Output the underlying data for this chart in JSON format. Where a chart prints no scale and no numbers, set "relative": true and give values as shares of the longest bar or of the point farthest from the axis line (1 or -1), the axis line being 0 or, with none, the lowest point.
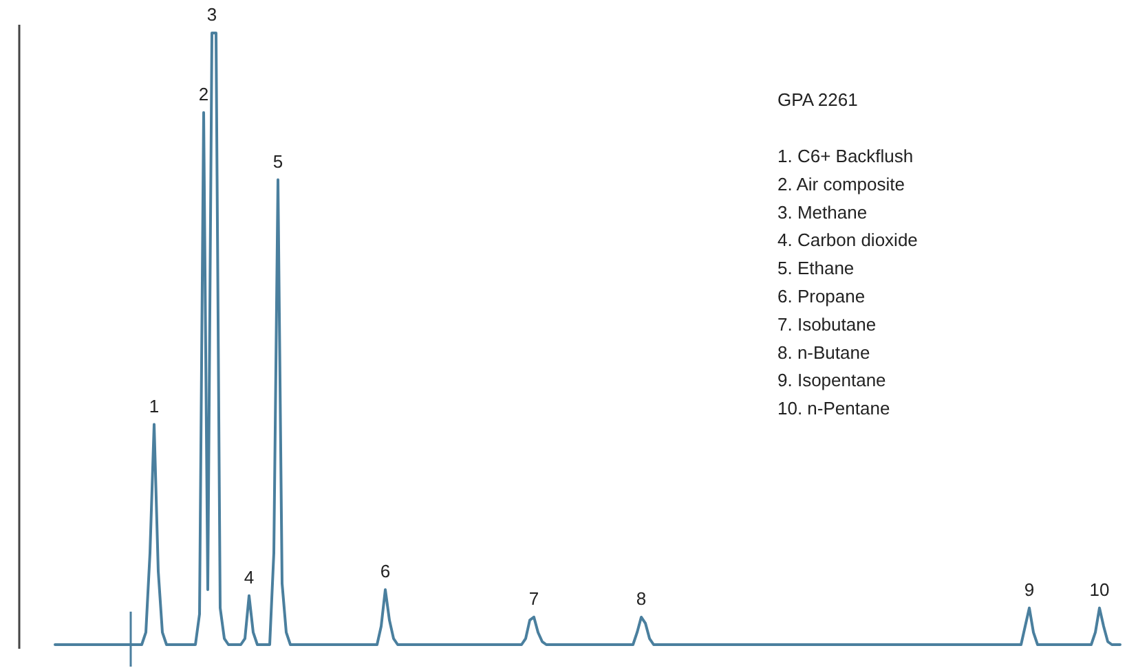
{
  "chart_data": {
    "type": "line",
    "title": "GPA 2261",
    "relative": true,
    "tick_labels": "x",
    "marker": "none",
    "annotations": [
      "1. C6+ Backflush",
      "2. Air composite",
      "3. Methane",
      "4. Carbon dioxide",
      "5. Ethane",
      "6. Propane",
      "7. Isobutane",
      "8. n-Butane",
      "9. Isopentane",
      "10. n-Pentane"
    ],
    "categories": [
      null,
      null,
      null,
      null,
      null,
      null,
      null,
      null,
      null,
      null,
      null,
      null,
      null,
      null,
      null,
      null,
      null,
      null,
      null,
      null,
      null,
      null,
      null,
      null,
      "1",
      null,
      null,
      null,
      null,
      null,
      null,
      null,
      null,
      null,
      null,
      null,
      "2",
      null,
      "3",
      null,
      null,
      null,
      null,
      null,
      null,
      null,
      null,
      "4",
      null,
      null,
      null,
      null,
      null,
      null,
      "5",
      null,
      null,
      null,
      null,
      null,
      null,
      null,
      null,
      null,
      null,
      null,
      null,
      null,
      null,
      null,
      null,
      null,
      null,
      null,
      null,
      null,
      null,
      null,
      null,
      null,
      "6",
      null,
      null,
      null,
      null,
      null,
      null,
      null,
      null,
      null,
      null,
      null,
      null,
      null,
      null,
      null,
      null,
      null,
      null,
      null,
      null,
      null,
      null,
      null,
      null,
      null,
      null,
      null,
      null,
      null,
      null,
      null,
      null,
      null,
      null,
      null,
      "7",
      null,
      null,
      null,
      null,
      null,
      null,
      null,
      null,
      null,
      null,
      null,
      null,
      null,
      null,
      null,
      null,
      null,
      null,
      null,
      null,
      null,
      null,
      null,
      null,
      null,
      "8",
      null,
      null,
      null,
      null,
      null,
      null,
      null,
      null,
      null,
      null,
      null,
      null,
      null,
      null,
      null,
      null,
      null,
      null,
      null,
      null,
      null,
      null,
      null,
      null,
      null,
      null,
      null,
      null,
      null,
      null,
      null,
      null,
      null,
      null,
      null,
      null,
      null,
      null,
      null,
      null,
      null,
      null,
      null,
      null,
      null,
      null,
      null,
      null,
      null,
      null,
      null,
      null,
      null,
      null,
      null,
      null,
      null,
      null,
      null,
      null,
      null,
      null,
      null,
      null,
      null,
      null,
      null,
      null,
      null,
      null,
      null,
      null,
      null,
      null,
      null,
      null,
      null,
      null,
      null,
      null,
      null,
      null,
      null,
      null,
      null,
      null,
      null,
      null,
      null,
      null,
      null,
      null,
      null,
      "9",
      null,
      null,
      null,
      null,
      null,
      null,
      null,
      null,
      null,
      null,
      null,
      null,
      null,
      null,
      null,
      null,
      "10",
      null,
      null,
      null,
      null,
      null
    ],
    "series": [
      {
        "color": "#4a7f9e",
        "line_style": "solid",
        "values": [
          0,
          0,
          0,
          0,
          0,
          0,
          0,
          0,
          0,
          0,
          0,
          0,
          0,
          0,
          0,
          0,
          0,
          0,
          0,
          0,
          0,
          0,
          0.02,
          0.15,
          0.36,
          0.12,
          0.02,
          0,
          0,
          0,
          0,
          0,
          0,
          0,
          0,
          0.05,
          0.87,
          0.09,
          1,
          1,
          0.06,
          0.01,
          0,
          0,
          0,
          0,
          0.01,
          0.08,
          0.02,
          0,
          0,
          0,
          0,
          0.15,
          0.76,
          0.1,
          0.02,
          0,
          0,
          0,
          0,
          0,
          0,
          0,
          0,
          0,
          0,
          0,
          0,
          0,
          0,
          0,
          0,
          0,
          0,
          0,
          0,
          0,
          0,
          0.03,
          0.09,
          0.04,
          0.01,
          0,
          0,
          0,
          0,
          0,
          0,
          0,
          0,
          0,
          0,
          0,
          0,
          0,
          0,
          0,
          0,
          0,
          0,
          0,
          0,
          0,
          0,
          0,
          0,
          0,
          0,
          0,
          0,
          0,
          0,
          0,
          0.01,
          0.04,
          0.045,
          0.02,
          0.005,
          0,
          0,
          0,
          0,
          0,
          0,
          0,
          0,
          0,
          0,
          0,
          0,
          0,
          0,
          0,
          0,
          0,
          0,
          0,
          0,
          0,
          0,
          0.02,
          0.045,
          0.035,
          0.01,
          0,
          0,
          0,
          0,
          0,
          0,
          0,
          0,
          0,
          0,
          0,
          0,
          0,
          0,
          0,
          0,
          0,
          0,
          0,
          0,
          0,
          0,
          0,
          0,
          0,
          0,
          0,
          0,
          0,
          0,
          0,
          0,
          0,
          0,
          0,
          0,
          0,
          0,
          0,
          0,
          0,
          0,
          0,
          0,
          0,
          0,
          0,
          0,
          0,
          0,
          0,
          0,
          0,
          0,
          0,
          0,
          0,
          0,
          0,
          0,
          0,
          0,
          0,
          0,
          0,
          0,
          0,
          0,
          0,
          0,
          0,
          0,
          0,
          0,
          0,
          0,
          0,
          0,
          0,
          0,
          0,
          0,
          0,
          0,
          0,
          0,
          0,
          0,
          0,
          0,
          0.03,
          0.06,
          0.02,
          0,
          0,
          0,
          0,
          0,
          0,
          0,
          0,
          0,
          0,
          0,
          0,
          0,
          0,
          0.02,
          0.06,
          0.03,
          0.005,
          0,
          0,
          0
        ]
      }
    ]
  }
}
